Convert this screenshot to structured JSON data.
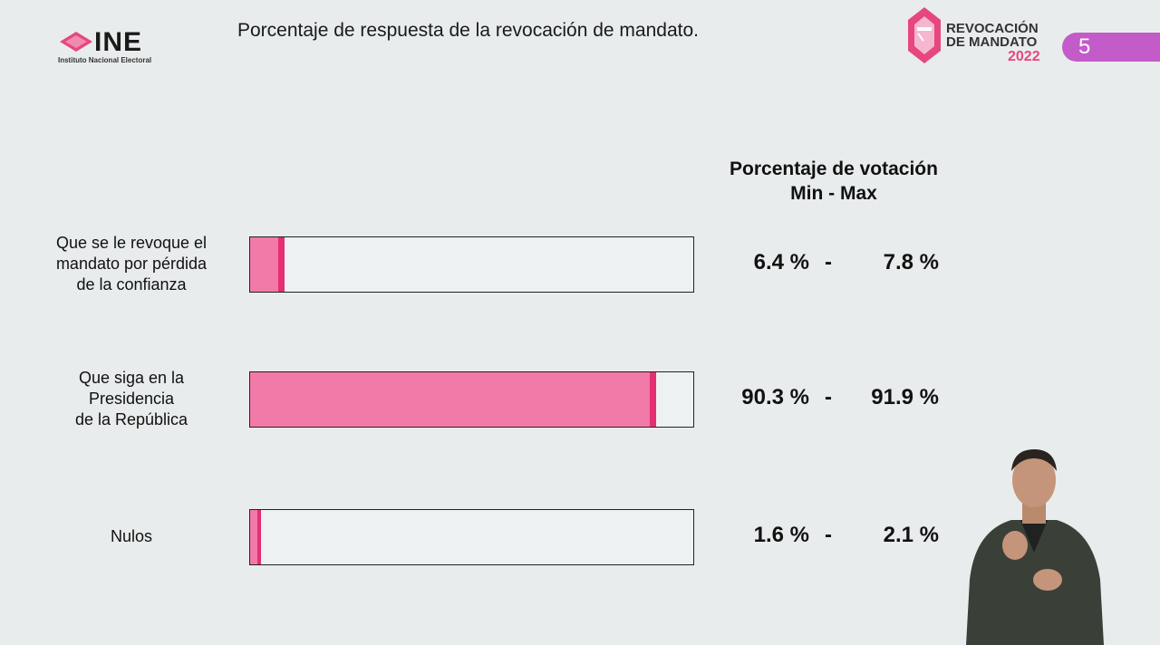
{
  "header": {
    "ine_logo": {
      "wordmark": "INE",
      "subtitle": "Instituto Nacional Electoral"
    },
    "title": "Porcentaje de respuesta de la revocación de mandato.",
    "revocacion_logo": {
      "line1": "REVOCACIÓN",
      "line2": "DE MANDATO",
      "year": "2022"
    },
    "slide_number": "5"
  },
  "colors": {
    "fill": "#f27aa8",
    "max_marker": "#e52f74",
    "badge": "#c35bc9",
    "background": "#e9ecec"
  },
  "chart_data": {
    "type": "bar",
    "orientation": "horizontal",
    "column_header": {
      "line1": "Porcentaje de votación",
      "line2": "Min - Max"
    },
    "xlim": [
      0,
      100
    ],
    "categories": [
      {
        "label_lines": [
          "Que se le revoque el",
          "mandato por pérdida",
          "de la confianza"
        ],
        "min": 6.4,
        "max": 7.8,
        "min_text": "6.4 %",
        "max_text": "7.8 %"
      },
      {
        "label_lines": [
          "Que siga en la",
          "Presidencia",
          "de la República"
        ],
        "min": 90.3,
        "max": 91.9,
        "min_text": "90.3 %",
        "max_text": "91.9 %"
      },
      {
        "label_lines": [
          "Nulos"
        ],
        "min": 1.6,
        "max": 2.1,
        "min_text": "1.6 %",
        "max_text": "2.1 %"
      }
    ],
    "separator": "-"
  }
}
